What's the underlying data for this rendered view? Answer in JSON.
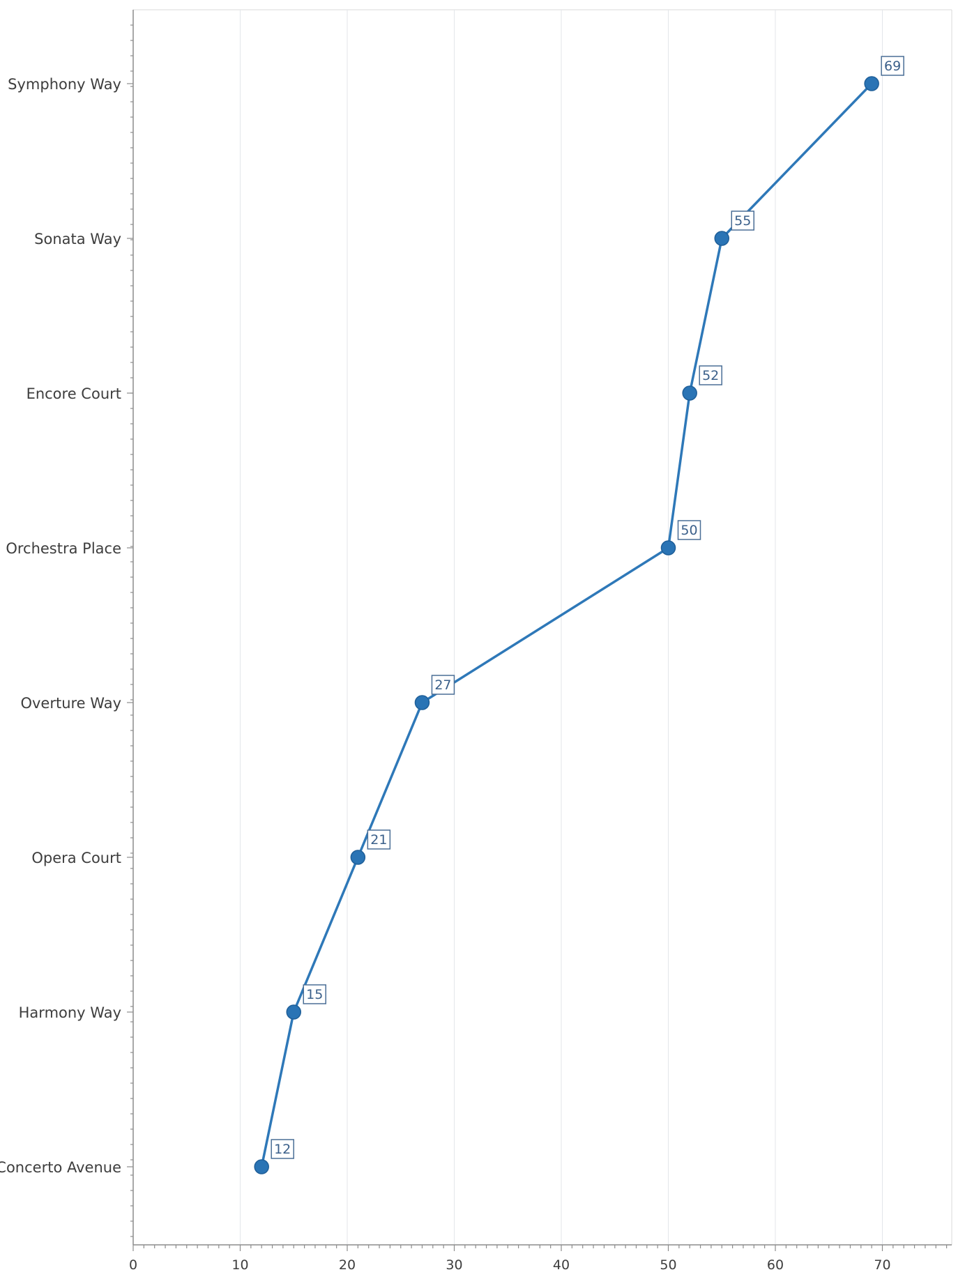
{
  "chart_data": {
    "type": "line",
    "orientation": "horizontal",
    "title": "",
    "xlabel": "",
    "ylabel": "",
    "categories": [
      "Symphony Way",
      "Sonata Way",
      "Encore Court",
      "Orchestra Place",
      "Overture Way",
      "Opera Court",
      "Harmony Way",
      "Concerto Avenue"
    ],
    "series": [
      {
        "values": [
          69,
          55,
          52,
          50,
          27,
          21,
          15,
          12
        ],
        "color": "#2e78b8"
      }
    ],
    "xlim": [
      0,
      76
    ],
    "xticks": [
      "0",
      "10",
      "20",
      "30",
      "40",
      "50",
      "60",
      "70"
    ],
    "xtick_values": [
      0,
      10,
      20,
      30,
      40,
      50,
      60,
      70
    ],
    "data_labels": [
      "69",
      "55",
      "52",
      "50",
      "27",
      "21",
      "15",
      "12"
    ],
    "grid": "vertical",
    "legend": "none"
  },
  "colors": {
    "series": "#2e78b8",
    "marker": "#2a74b5",
    "label_border": "#4a6e96",
    "gridline": "#e3e6ea"
  }
}
